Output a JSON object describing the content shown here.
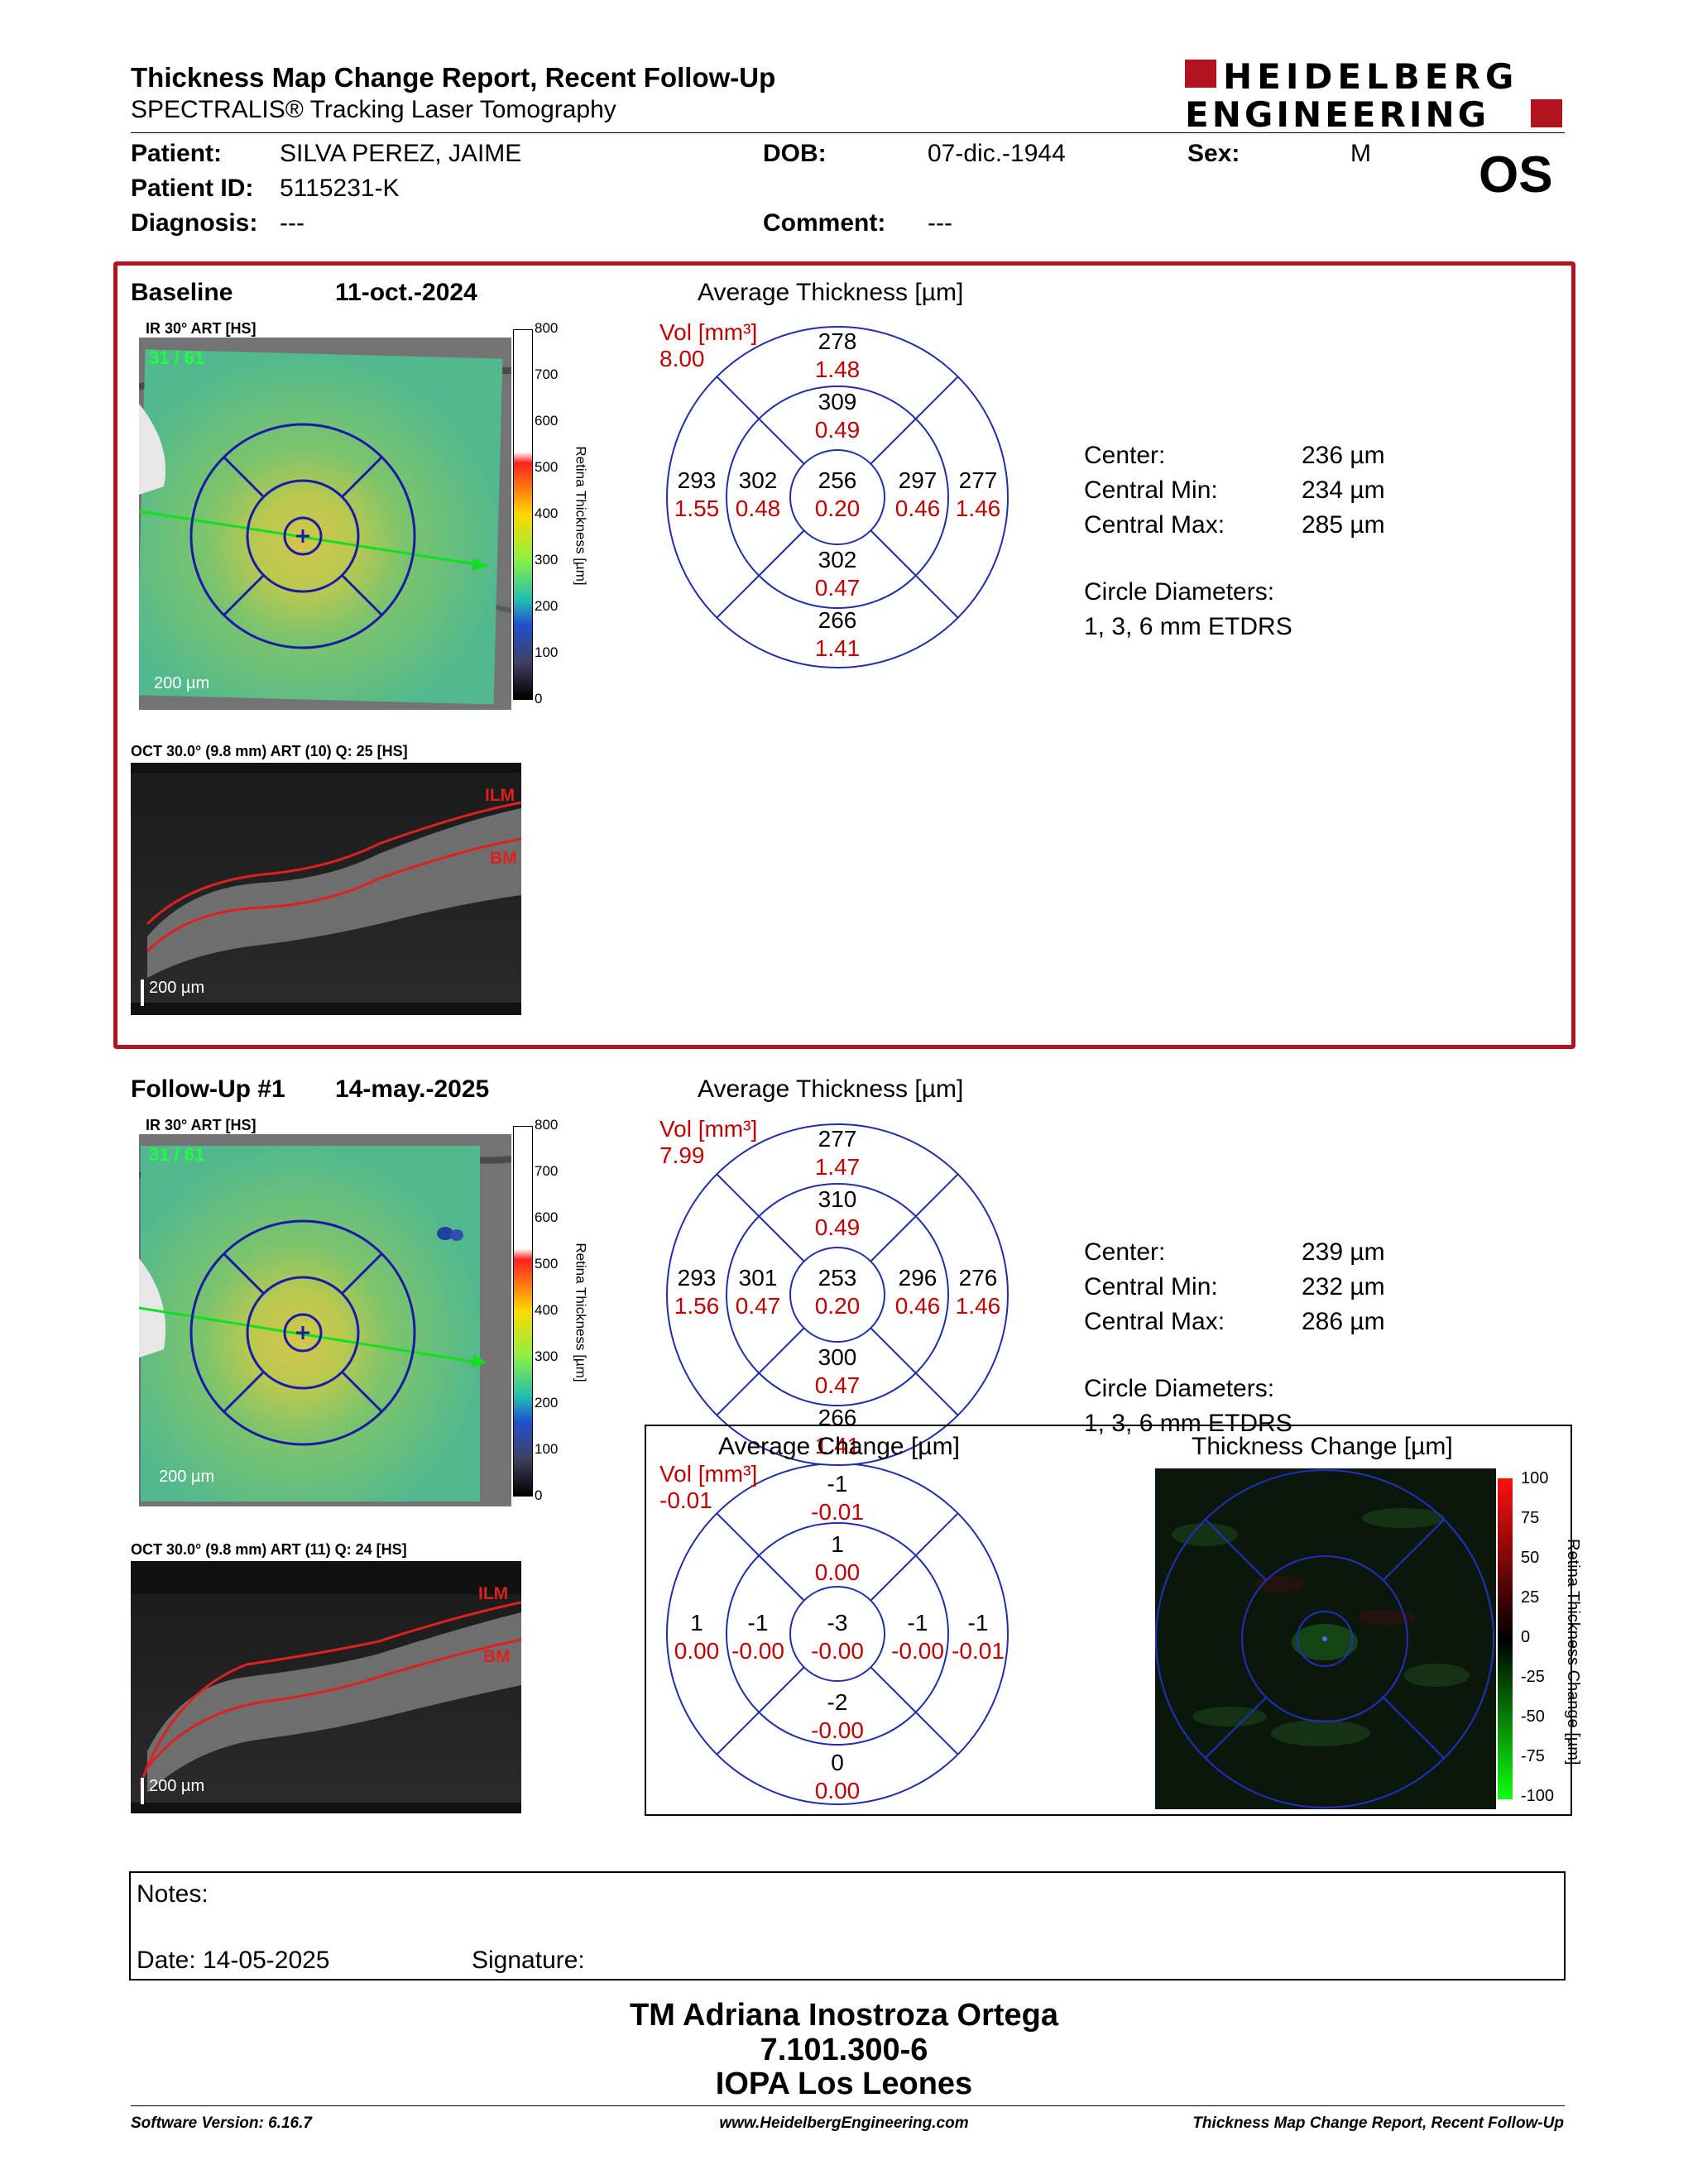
{
  "header": {
    "title": "Thickness Map Change Report, Recent Follow-Up",
    "subtitle": "SPECTRALIS® Tracking Laser Tomography",
    "logo_line1": "HEIDELBERG",
    "logo_line2": "ENGINEERING",
    "eye": "OS"
  },
  "patient": {
    "patient_label": "Patient:",
    "patient_value": "SILVA PEREZ, JAIME",
    "dob_label": "DOB:",
    "dob_value": "07-dic.-1944",
    "sex_label": "Sex:",
    "sex_value": "M",
    "id_label": "Patient ID:",
    "id_value": "5115231-K",
    "diag_label": "Diagnosis:",
    "diag_value": "---",
    "comment_label": "Comment:",
    "comment_value": "---"
  },
  "colors": {
    "frame": "#b3121f",
    "red": "#c00000",
    "grid": "#1f2fa8"
  },
  "baseline": {
    "label": "Baseline",
    "date": "11-oct.-2024",
    "ir_label": "IR 30° ART [HS]",
    "frame_counter": "31 / 61",
    "scale": "200 µm",
    "oct_label": "OCT 30.0° (9.8 mm) ART (10) Q: 25 [HS]",
    "ilm": "ILM",
    "bm": "BM",
    "oct_scale": "200 µm",
    "colorbar_title": "Retina Thickness [µm]",
    "colorbar_ticks": [
      "800",
      "700",
      "600",
      "500",
      "400",
      "300",
      "200",
      "100",
      "0"
    ],
    "avg_title": "Average Thickness [µm]",
    "vol_label": "Vol [mm³]",
    "vol_value": "8.00",
    "sectors": {
      "outer_top": [
        "278",
        "1.48"
      ],
      "inner_top": [
        "309",
        "0.49"
      ],
      "outer_left": [
        "293",
        "1.55"
      ],
      "inner_left": [
        "302",
        "0.48"
      ],
      "center": [
        "256",
        "0.20"
      ],
      "inner_right": [
        "297",
        "0.46"
      ],
      "outer_right": [
        "277",
        "1.46"
      ],
      "inner_bottom": [
        "302",
        "0.47"
      ],
      "outer_bottom": [
        "266",
        "1.41"
      ]
    },
    "stats": {
      "center_label": "Center:",
      "center_value": "236 µm",
      "min_label": "Central Min:",
      "min_value": "234 µm",
      "max_label": "Central Max:",
      "max_value": "285 µm",
      "diam_label": "Circle Diameters:",
      "diam_value": "1, 3, 6 mm ETDRS"
    }
  },
  "followup": {
    "label": "Follow-Up #1",
    "date": "14-may.-2025",
    "ir_label": "IR 30° ART [HS]",
    "frame_counter": "31 / 61",
    "scale": "200 µm",
    "oct_label": "OCT 30.0° (9.8 mm) ART (11) Q: 24 [HS]",
    "ilm": "ILM",
    "bm": "BM",
    "oct_scale": "200 µm",
    "colorbar_title": "Retina Thickness [µm]",
    "colorbar_ticks": [
      "800",
      "700",
      "600",
      "500",
      "400",
      "300",
      "200",
      "100",
      "0"
    ],
    "avg_title": "Average Thickness [µm]",
    "vol_label": "Vol [mm³]",
    "vol_value": "7.99",
    "sectors": {
      "outer_top": [
        "277",
        "1.47"
      ],
      "inner_top": [
        "310",
        "0.49"
      ],
      "outer_left": [
        "293",
        "1.56"
      ],
      "inner_left": [
        "301",
        "0.47"
      ],
      "center": [
        "253",
        "0.20"
      ],
      "inner_right": [
        "296",
        "0.46"
      ],
      "outer_right": [
        "276",
        "1.46"
      ],
      "inner_bottom": [
        "300",
        "0.47"
      ],
      "outer_bottom": [
        "266",
        "1.41"
      ]
    },
    "stats": {
      "center_label": "Center:",
      "center_value": "239 µm",
      "min_label": "Central Min:",
      "min_value": "232 µm",
      "max_label": "Central Max:",
      "max_value": "286 µm",
      "diam_label": "Circle Diameters:",
      "diam_value": "1, 3, 6 mm ETDRS"
    }
  },
  "change": {
    "avg_title": "Average Change [µm]",
    "vol_label": "Vol [mm³]",
    "vol_value": "-0.01",
    "sectors": {
      "outer_top": [
        "-1",
        "-0.01"
      ],
      "inner_top": [
        "1",
        "0.00"
      ],
      "outer_left": [
        "1",
        "0.00"
      ],
      "inner_left": [
        "-1",
        "-0.00"
      ],
      "center": [
        "-3",
        "-0.00"
      ],
      "inner_right": [
        "-1",
        "-0.00"
      ],
      "outer_right": [
        "-1",
        "-0.01"
      ],
      "inner_bottom": [
        "-2",
        "-0.00"
      ],
      "outer_bottom": [
        "0",
        "0.00"
      ]
    },
    "map_title": "Thickness Change [µm]",
    "colorbar_title": "Retina Thickness Change [µm]",
    "colorbar_ticks": [
      "100",
      "75",
      "50",
      "25",
      "0",
      "-25",
      "-50",
      "-75",
      "-100"
    ]
  },
  "notes": {
    "notes_label": "Notes:",
    "date_label": "Date: 14-05-2025",
    "signature_label": "Signature:"
  },
  "signer": {
    "name": "TM Adriana Inostroza Ortega",
    "id": "7.101.300-6",
    "org": "IOPA Los Leones"
  },
  "footer": {
    "software": "Software Version: 6.16.7",
    "url": "www.HeidelbergEngineering.com",
    "report": "Thickness Map Change Report, Recent Follow-Up"
  }
}
